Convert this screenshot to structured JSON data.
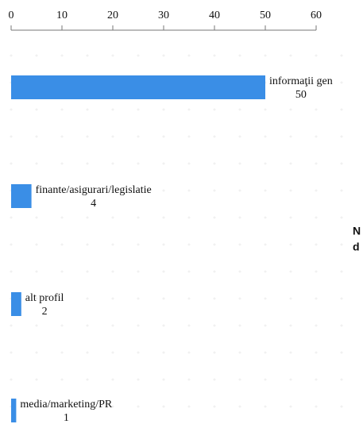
{
  "chart_data": {
    "type": "bar",
    "orientation": "horizontal",
    "categories": [
      "informaţii gen",
      "finante/asigurari/legislatie",
      "alt profil",
      "media/marketing/PR"
    ],
    "values": [
      50,
      4,
      2,
      1
    ],
    "color": "#3a8ee6",
    "xlim": [
      0,
      60
    ],
    "xticks": [
      0,
      10,
      20,
      30,
      40,
      50,
      60
    ],
    "annotations": [
      "N",
      "d"
    ]
  }
}
